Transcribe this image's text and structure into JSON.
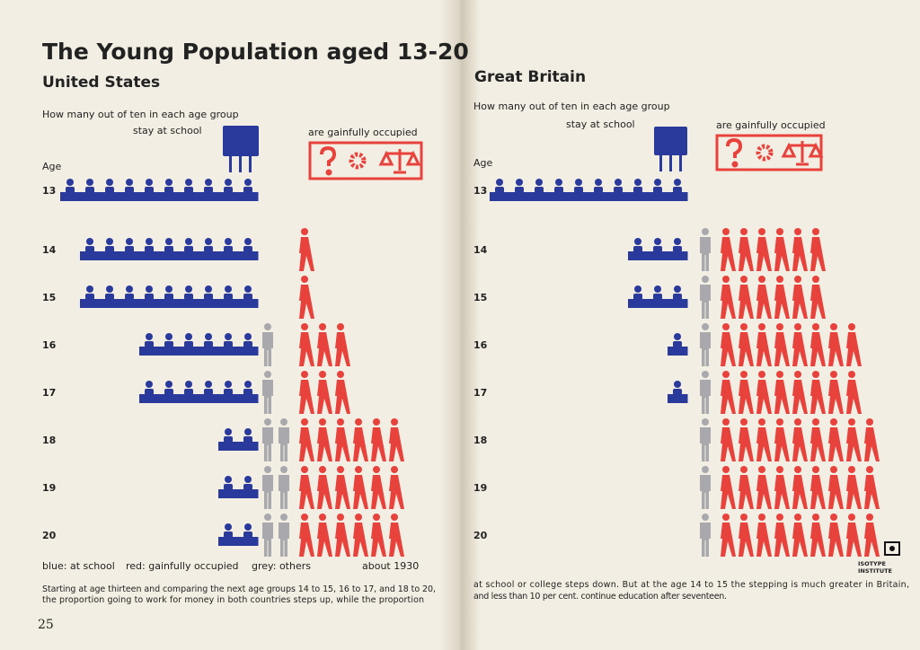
{
  "title": "The Young Population aged 13-20",
  "legend": [
    "blue: at school",
    "red: gainfully occupied",
    "grey: others"
  ],
  "note": "about 1930",
  "paragraph_left": [
    "Starting at age thirteen and comparing the next age groups 14 to 15, 16 to 17, and 18 to 20,",
    "the proportion going to work for money in both countries steps up, while the proportion"
  ],
  "paragraph_right": [
    "at school or college steps down.  But at the age 14 to 15 the stepping is much greater in Britain,",
    "and less than 10 per cent. continue education after seventeen."
  ],
  "page_number": "25",
  "logo": [
    "ISOTYPE",
    "INSTITUTE"
  ],
  "chart_data": [
    {
      "type": "isotype",
      "title": "United States",
      "question": "How many out of ten in each age group",
      "school_label": "stay at school",
      "occupied_label": "are gainfully occupied",
      "age_label": "Age",
      "categories": [
        "13",
        "14",
        "15",
        "16",
        "17",
        "18",
        "19",
        "20"
      ],
      "series": [
        {
          "color": "#2a3a9c",
          "values": [
            10,
            9,
            9,
            6,
            6,
            2,
            2,
            2
          ]
        },
        {
          "color": "#e8423c",
          "values": [
            0,
            1,
            1,
            3,
            3,
            6,
            6,
            6
          ]
        },
        {
          "color": "#a9a9ad",
          "values": [
            0,
            0,
            0,
            1,
            1,
            2,
            2,
            2
          ]
        }
      ]
    },
    {
      "type": "isotype",
      "title": "Great Britain",
      "question": "How many out of ten in each age group",
      "school_label": "stay at school",
      "occupied_label": "are gainfully occupied",
      "age_label": "Age",
      "categories": [
        "13",
        "14",
        "15",
        "16",
        "17",
        "18",
        "19",
        "20"
      ],
      "series": [
        {
          "color": "#2a3a9c",
          "values": [
            10,
            3,
            3,
            1,
            1,
            0,
            0,
            0
          ]
        },
        {
          "color": "#e8423c",
          "values": [
            0,
            6,
            6,
            8,
            8,
            9,
            9,
            9
          ]
        },
        {
          "color": "#a9a9ad",
          "values": [
            0,
            1,
            1,
            1,
            1,
            1,
            1,
            1
          ]
        }
      ]
    }
  ]
}
